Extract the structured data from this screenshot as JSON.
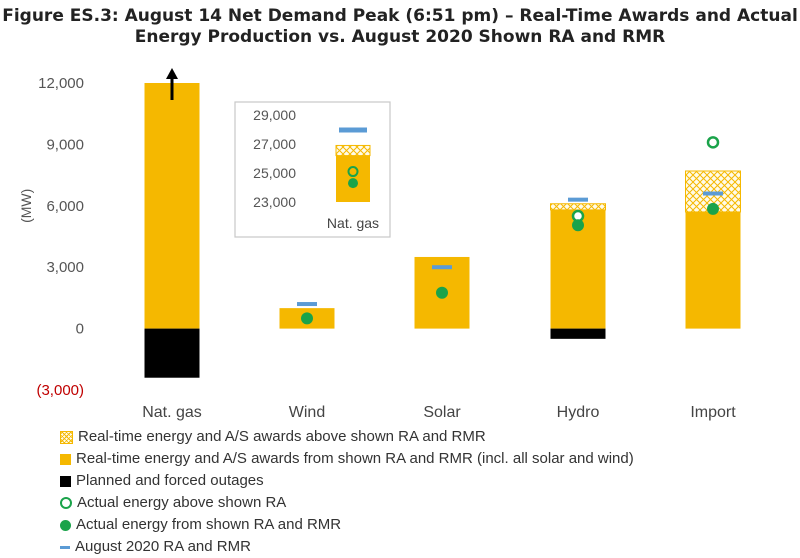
{
  "title": {
    "line1": "Figure ES.3: August 14 Net Demand Peak (6:51 pm) – Real-Time Awards and Actual",
    "line2": "Energy Production vs. August 2020 Shown RA and RMR"
  },
  "colors": {
    "awards": "#f5b800",
    "outages": "#000000",
    "actual": "#1aa34a",
    "ra_rmr": "#5b9bd5",
    "negative_tick": "#c00000"
  },
  "chart_data": {
    "type": "bar",
    "ylabel": "(MW)",
    "ylim": [
      -3000,
      12000
    ],
    "yticks": [
      -3000,
      0,
      3000,
      6000,
      9000,
      12000
    ],
    "ytick_labels": [
      "(3,000)",
      "0",
      "3,000",
      "6,000",
      "9,000",
      "12,000"
    ],
    "categories": [
      "Nat. gas",
      "Wind",
      "Solar",
      "Hydro",
      "Import"
    ],
    "series": [
      {
        "name": "Real-time energy and A/S awards above shown RA and RMR",
        "values": [
          0,
          0,
          0,
          300,
          2000
        ]
      },
      {
        "name": "Real-time energy and A/S awards from shown RA and RMR (incl. all solar and wind)",
        "values": [
          12000,
          1000,
          3500,
          5800,
          5700
        ]
      },
      {
        "name": "Planned and forced outages",
        "values": [
          -2400,
          0,
          0,
          -500,
          0
        ]
      },
      {
        "name": "Actual energy above shown RA",
        "values": [
          null,
          null,
          null,
          5500,
          9100
        ]
      },
      {
        "name": "Actual energy from shown RA and RMR",
        "values": [
          null,
          500,
          1750,
          5050,
          5850
        ]
      },
      {
        "name": "August 2020 RA and RMR",
        "values": [
          null,
          1200,
          3000,
          6300,
          6600
        ]
      }
    ],
    "inset": {
      "category": "Nat. gas",
      "ylim": [
        23000,
        29000
      ],
      "yticks": [
        23000,
        25000,
        27000,
        29000
      ],
      "ytick_labels": [
        "23,000",
        "25,000",
        "27,000",
        "29,000"
      ],
      "awards_from_ra": 26200,
      "awards_above_ra": 700,
      "actual_above_ra": 25100,
      "actual_from_ra": 24300,
      "ra_rmr": 28000
    },
    "legend_position": "bottom",
    "grid": false
  },
  "legend": [
    {
      "type": "hatch",
      "label": "Real-time energy and A/S awards above shown RA and RMR"
    },
    {
      "type": "solid",
      "label": "Real-time energy and A/S awards from shown RA and RMR (incl. all solar and wind)"
    },
    {
      "type": "black",
      "label": "Planned and forced outages"
    },
    {
      "type": "ring",
      "label": "Actual energy above shown RA"
    },
    {
      "type": "dot",
      "label": "Actual energy from shown RA and RMR"
    },
    {
      "type": "dash",
      "label": "August 2020 RA and RMR"
    }
  ]
}
